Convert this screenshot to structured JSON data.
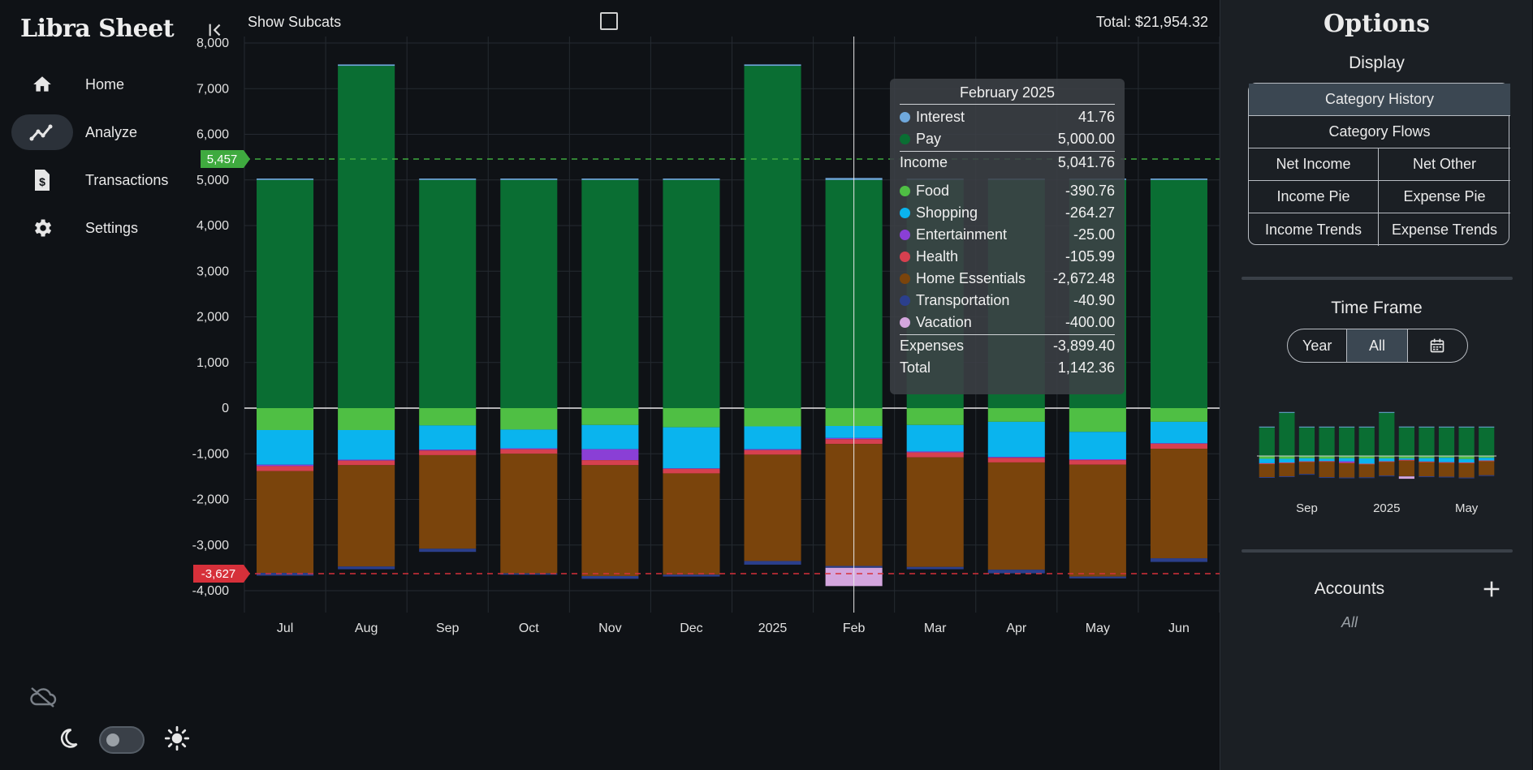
{
  "app": {
    "title": "Libra Sheet"
  },
  "sidebar": {
    "items": [
      {
        "label": "Home",
        "icon": "home-icon"
      },
      {
        "label": "Analyze",
        "icon": "analyze-icon",
        "active": true
      },
      {
        "label": "Transactions",
        "icon": "invoice-icon"
      },
      {
        "label": "Settings",
        "icon": "gear-icon"
      }
    ]
  },
  "header": {
    "show_subcats_label": "Show Subcats",
    "show_subcats_checked": false,
    "total": "Total: $21,954.32"
  },
  "colors": {
    "Interest": "#6fa8dc",
    "Pay": "#0a6e33",
    "Food": "#4fbf44",
    "Shopping": "#0ab4ee",
    "Entertainment": "#8a3fd6",
    "Health": "#d6404f",
    "Home Essentials": "#7a440c",
    "Transportation": "#2b3f8c",
    "Vacation": "#d4a6de"
  },
  "chart_data": {
    "type": "bar",
    "stacked": true,
    "categories": [
      "Jul",
      "Aug",
      "Sep",
      "Oct",
      "Nov",
      "Dec",
      "2025",
      "Feb",
      "Mar",
      "Apr",
      "May",
      "Jun"
    ],
    "ylim": [
      -4000,
      8000
    ],
    "yticks": [
      "8,000",
      "7,000",
      "6,000",
      "5,000",
      "4,000",
      "3,000",
      "2,000",
      "1,000",
      "0",
      "-1,000",
      "-2,000",
      "-3,000",
      "-4,000"
    ],
    "ytick_values": [
      8000,
      7000,
      6000,
      5000,
      4000,
      3000,
      2000,
      1000,
      0,
      -1000,
      -2000,
      -3000,
      -4000
    ],
    "reference_lines": [
      {
        "label": "5,457",
        "value": 5457,
        "color": "#3faa3f"
      },
      {
        "label": "-3,627",
        "value": -3627,
        "color": "#d6303a"
      }
    ],
    "series": [
      {
        "name": "Pay",
        "values": [
          5000,
          7500,
          5000,
          5000,
          5000,
          5000,
          7500,
          5000,
          5000,
          5000,
          5000,
          5000
        ]
      },
      {
        "name": "Interest",
        "values": [
          30,
          30,
          30,
          30,
          30,
          30,
          30,
          42,
          30,
          30,
          30,
          30
        ]
      },
      {
        "name": "Food",
        "values": [
          -480,
          -480,
          -380,
          -470,
          -370,
          -420,
          -400,
          -391,
          -370,
          -300,
          -520,
          -300
        ]
      },
      {
        "name": "Shopping",
        "values": [
          -760,
          -650,
          -530,
          -410,
          -530,
          -900,
          -500,
          -264,
          -580,
          -770,
          -600,
          -470
        ]
      },
      {
        "name": "Entertainment",
        "values": [
          -30,
          -20,
          -20,
          -20,
          -240,
          -10,
          -20,
          -25,
          -20,
          -20,
          -20,
          -10
        ]
      },
      {
        "name": "Health",
        "values": [
          -110,
          -100,
          -100,
          -100,
          -110,
          -100,
          -100,
          -106,
          -110,
          -100,
          -100,
          -110
        ]
      },
      {
        "name": "Home Essentials",
        "values": [
          -2230,
          -2220,
          -2050,
          -2620,
          -2430,
          -2220,
          -2330,
          -2672,
          -2400,
          -2350,
          -2450,
          -2400
        ]
      },
      {
        "name": "Transportation",
        "values": [
          -60,
          -60,
          -70,
          -30,
          -60,
          -40,
          -80,
          -41,
          -50,
          -80,
          -40,
          -80
        ]
      },
      {
        "name": "Vacation",
        "values": [
          0,
          0,
          0,
          0,
          0,
          0,
          0,
          -400,
          0,
          0,
          0,
          0
        ]
      }
    ],
    "hover_index": 7
  },
  "tooltip": {
    "title": "February 2025",
    "income_rows": [
      {
        "name": "Interest",
        "value": "41.76"
      },
      {
        "name": "Pay",
        "value": "5,000.00"
      }
    ],
    "income_label": "Income",
    "income_total": "5,041.76",
    "expense_rows": [
      {
        "name": "Food",
        "value": "-390.76"
      },
      {
        "name": "Shopping",
        "value": "-264.27"
      },
      {
        "name": "Entertainment",
        "value": "-25.00"
      },
      {
        "name": "Health",
        "value": "-105.99"
      },
      {
        "name": "Home Essentials",
        "value": "-2,672.48"
      },
      {
        "name": "Transportation",
        "value": "-40.90"
      },
      {
        "name": "Vacation",
        "value": "-400.00"
      }
    ],
    "expenses_label": "Expenses",
    "expenses_total": "-3,899.40",
    "total_label": "Total",
    "total": "1,142.36"
  },
  "options": {
    "title": "Options",
    "display_label": "Display",
    "display_buttons": {
      "category_history": "Category History",
      "category_flows": "Category Flows",
      "net_income": "Net Income",
      "net_other": "Net Other",
      "income_pie": "Income Pie",
      "expense_pie": "Expense Pie",
      "income_trends": "Income Trends",
      "expense_trends": "Expense Trends"
    },
    "time_frame_label": "Time Frame",
    "time_frame": {
      "year": "Year",
      "all": "All",
      "selected": "All"
    },
    "mini_chart_labels": [
      "Sep",
      "2025",
      "May"
    ],
    "accounts_label": "Accounts",
    "accounts_value": "All"
  }
}
